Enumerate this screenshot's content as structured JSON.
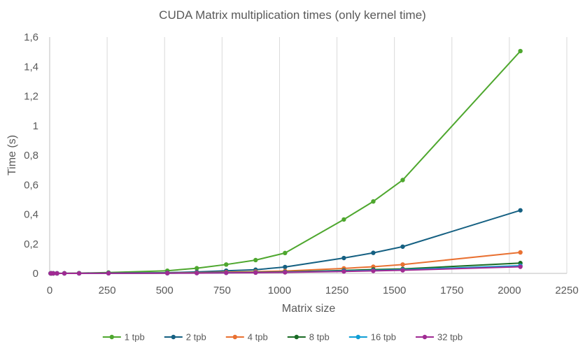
{
  "chart_data": {
    "type": "line",
    "title": "CUDA Matrix multiplication times (only kernel time)",
    "xlabel": "Matrix size",
    "ylabel": "Time (s)",
    "xlim": [
      0,
      2250
    ],
    "ylim": [
      0,
      1.6
    ],
    "xticks": [
      0,
      250,
      500,
      750,
      1000,
      1250,
      1500,
      1750,
      2000,
      2250
    ],
    "yticks": [
      0,
      0.2,
      0.4,
      0.6,
      0.8,
      1,
      1.2,
      1.4,
      1.6
    ],
    "xtick_labels": [
      "0",
      "250",
      "500",
      "750",
      "1000",
      "1250",
      "1500",
      "1750",
      "2000",
      "2250"
    ],
    "ytick_labels": [
      "0",
      "0,2",
      "0,4",
      "0,6",
      "0,8",
      "1",
      "1,2",
      "1,4",
      "1,6"
    ],
    "grid": "vertical",
    "legend_position": "bottom",
    "x": [
      4,
      8,
      16,
      32,
      64,
      128,
      256,
      512,
      640,
      768,
      896,
      1024,
      1280,
      1408,
      1536,
      2048
    ],
    "series": [
      {
        "name": "1 tpb",
        "color": "#4ea72e",
        "values": [
          0.0001,
          0.0001,
          0.0002,
          0.0004,
          0.0008,
          0.0018,
          0.006,
          0.018,
          0.035,
          0.06,
          0.09,
          0.138,
          0.365,
          0.487,
          0.632,
          1.505
        ]
      },
      {
        "name": "2 tpb",
        "color": "#156082",
        "values": [
          0.0001,
          0.0001,
          0.0001,
          0.0002,
          0.0004,
          0.0009,
          0.003,
          0.005,
          0.01,
          0.018,
          0.025,
          0.043,
          0.104,
          0.139,
          0.181,
          0.427
        ]
      },
      {
        "name": "4 tpb",
        "color": "#e97132",
        "values": [
          0.0001,
          0.0001,
          0.0001,
          0.0001,
          0.0002,
          0.0005,
          0.0015,
          0.003,
          0.005,
          0.008,
          0.012,
          0.016,
          0.034,
          0.045,
          0.06,
          0.142
        ]
      },
      {
        "name": "8 tpb",
        "color": "#196b24",
        "values": [
          0.0001,
          0.0001,
          0.0001,
          0.0001,
          0.0001,
          0.0003,
          0.001,
          0.002,
          0.003,
          0.005,
          0.007,
          0.01,
          0.02,
          0.026,
          0.03,
          0.07
        ]
      },
      {
        "name": "16 tpb",
        "color": "#0f9ed5",
        "values": [
          0.0001,
          0.0001,
          0.0001,
          0.0001,
          0.0001,
          0.0002,
          0.0008,
          0.0015,
          0.0025,
          0.004,
          0.006,
          0.008,
          0.016,
          0.02,
          0.025,
          0.052
        ]
      },
      {
        "name": "32 tpb",
        "color": "#a02b93",
        "values": [
          0.0001,
          0.0001,
          0.0001,
          0.0001,
          0.0001,
          0.0002,
          0.0007,
          0.0013,
          0.002,
          0.0035,
          0.005,
          0.007,
          0.013,
          0.017,
          0.021,
          0.045
        ]
      }
    ]
  }
}
